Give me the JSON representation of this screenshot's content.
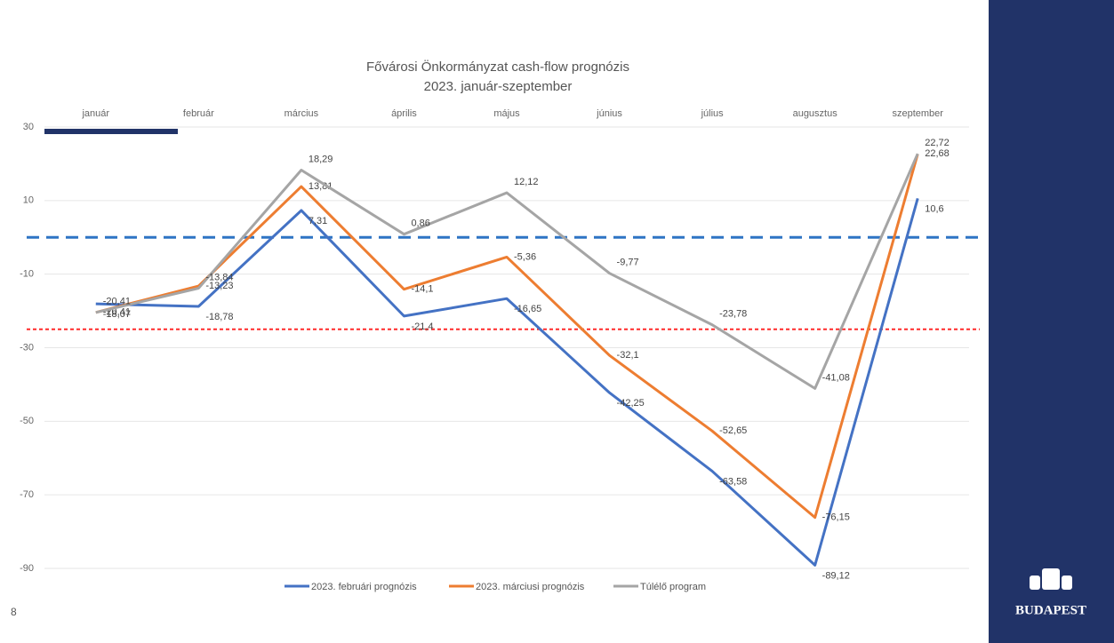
{
  "page_number": "8",
  "logo": "BUDAPEST",
  "chart_data": {
    "type": "line",
    "title": "Fővárosi Önkormányzat cash-flow prognózis",
    "subtitle": "2023. január-szeptember",
    "categories": [
      "január",
      "február",
      "március",
      "április",
      "május",
      "június",
      "július",
      "augusztus",
      "szeptember"
    ],
    "ylim": [
      -90,
      30
    ],
    "yticks": [
      30,
      10,
      -10,
      -30,
      -50,
      -70,
      -90
    ],
    "grid": true,
    "reference_lines": [
      {
        "value": 0,
        "color": "#2e74c4",
        "style": "dashed"
      },
      {
        "value": -25,
        "color": "#ff2a2a",
        "style": "dotted"
      }
    ],
    "series": [
      {
        "name": "2023. februári prognózis",
        "color": "#4472c4",
        "values": [
          -18.07,
          -18.78,
          7.31,
          -21.4,
          -16.65,
          -42.25,
          -63.58,
          -89.12,
          10.6
        ],
        "value_labels": [
          "-18,07",
          "-18,78",
          "7,31",
          "-21,4",
          "-16,65",
          "-42,25",
          "-63,58",
          "-89,12",
          "10,6"
        ]
      },
      {
        "name": "2023. márciusi prognózis",
        "color": "#ed7d31",
        "values": [
          -20.41,
          -13.23,
          13.81,
          -14.1,
          -5.36,
          -32.1,
          -52.65,
          -76.15,
          22.68
        ],
        "value_labels": [
          "-20,41",
          "-13,23",
          "13,81",
          "-14,1",
          "-5,36",
          "-32,1",
          "-52,65",
          "-76,15",
          "22,68"
        ]
      },
      {
        "name": "Túlélő program",
        "color": "#a5a5a5",
        "values": [
          -20.41,
          -13.84,
          18.29,
          0.86,
          12.12,
          -9.77,
          -23.78,
          -41.08,
          22.72
        ],
        "value_labels": [
          "-20,41",
          "-13,84",
          "18,29",
          "0,86",
          "12,12",
          "-9,77",
          "-23,78",
          "-41,08",
          "22,72"
        ]
      }
    ]
  }
}
